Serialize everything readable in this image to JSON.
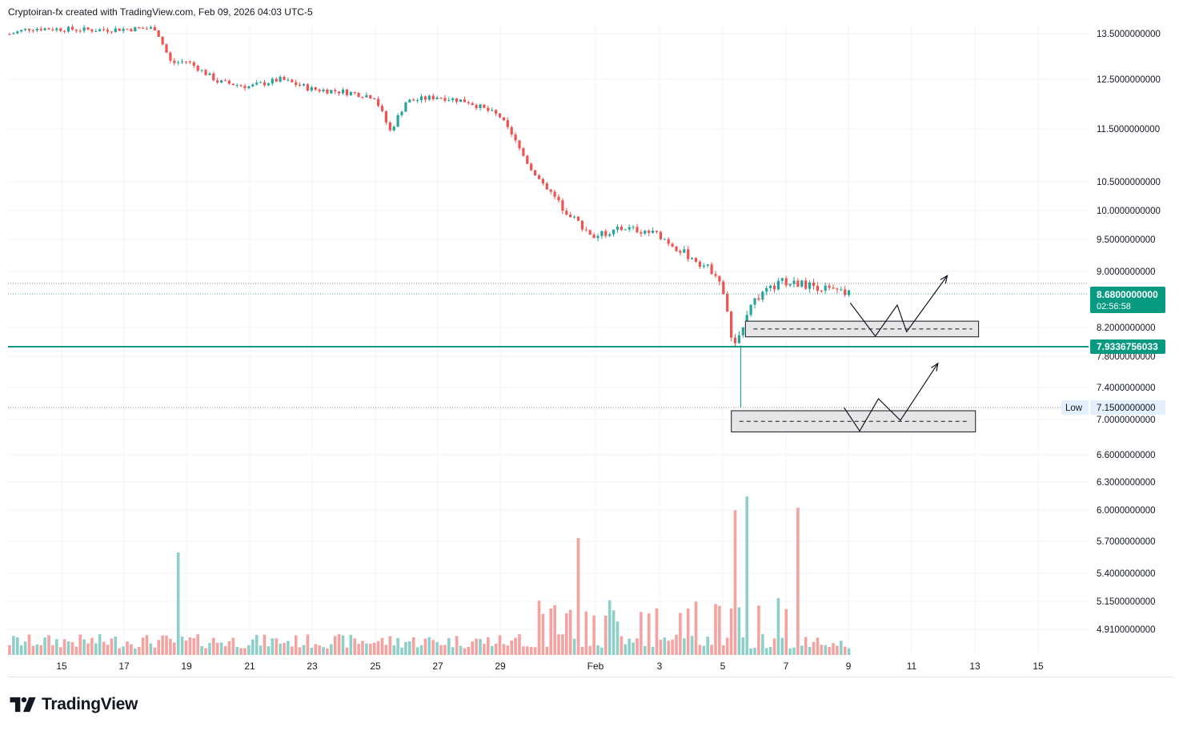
{
  "header": {
    "attribution": "Cryptoiran-fx created with TradingView.com, Feb 09, 2026 04:03 UTC-5"
  },
  "footer": {
    "brand": "TradingView"
  },
  "colors": {
    "up": "#26a69a",
    "down": "#ef5350",
    "upVol": "#8fcfc9",
    "downVol": "#f4a3a1",
    "grid": "#f0f3fa",
    "accent": "#089981",
    "lowTag": "#e3effd"
  },
  "chart_data": {
    "type": "candlestick",
    "title": "",
    "price_scale": {
      "ticks": [
        "13.5000000000",
        "12.5000000000",
        "11.5000000000",
        "10.5000000000",
        "10.0000000000",
        "9.5000000000",
        "9.0000000000",
        "8.2000000000",
        "7.8000000000",
        "7.4000000000",
        "7.0000000000",
        "6.6000000000",
        "6.3000000000",
        "6.0000000000",
        "5.7000000000",
        "5.4000000000",
        "5.1500000000",
        "4.9100000000"
      ]
    },
    "time_scale": {
      "ticks": [
        "15",
        "17",
        "19",
        "21",
        "23",
        "25",
        "27",
        "29",
        "Feb",
        "3",
        "5",
        "7",
        "9",
        "11",
        "13",
        "15"
      ]
    },
    "price_tags": {
      "last_price": "8.6800000000",
      "countdown": "02:56:58",
      "horizontal_line": "7.9336756033",
      "low_label": "Low",
      "low_value": "7.1500000000"
    },
    "price_path": [
      [
        "Jan 13",
        13.42
      ],
      [
        "Jan 14",
        13.62
      ],
      [
        "Jan 15",
        13.6
      ],
      [
        "Jan 16",
        13.58
      ],
      [
        "Jan 17",
        13.6
      ],
      [
        "Jan 18",
        13.62
      ],
      [
        "Jan 18.5",
        12.85
      ],
      [
        "Jan 19",
        12.9
      ],
      [
        "Jan 20",
        12.45
      ],
      [
        "Jan 21",
        12.35
      ],
      [
        "Jan 22",
        12.5
      ],
      [
        "Jan 23",
        12.3
      ],
      [
        "Jan 24",
        12.25
      ],
      [
        "Jan 25",
        12.15
      ],
      [
        "Jan 25.5",
        11.45
      ],
      [
        "Jan 26",
        12.05
      ],
      [
        "Jan 27",
        12.15
      ],
      [
        "Jan 28",
        12.05
      ],
      [
        "Jan 29",
        11.75
      ],
      [
        "Jan 30",
        10.75
      ],
      [
        "Jan 31",
        10.05
      ],
      [
        "Feb 1",
        9.55
      ],
      [
        "Feb 2",
        9.7
      ],
      [
        "Feb 3",
        9.6
      ],
      [
        "Feb 4",
        9.25
      ],
      [
        "Feb 5",
        8.95
      ],
      [
        "Feb 5.5",
        7.9
      ],
      [
        "Feb 6",
        8.55
      ],
      [
        "Feb 7",
        8.85
      ],
      [
        "Feb 8",
        8.8
      ],
      [
        "Feb 9",
        8.68
      ]
    ],
    "volume_note": "volume bars shown beneath price candles",
    "projections": [
      {
        "zone": [
          8.07,
          8.29
        ],
        "path": [
          [
            8.55,
            "Feb 9.2"
          ],
          [
            8.08,
            "Feb 10"
          ],
          [
            8.52,
            "Feb 10.7"
          ],
          [
            8.14,
            "Feb 11"
          ],
          [
            8.94,
            "Feb 12.3"
          ]
        ]
      },
      {
        "zone": [
          6.86,
          7.11
        ],
        "path": [
          [
            7.15,
            "Feb 9"
          ],
          [
            6.87,
            "Feb 9.5"
          ],
          [
            7.26,
            "Feb 10.1"
          ],
          [
            6.99,
            "Feb 10.8"
          ],
          [
            7.71,
            "Feb 12"
          ]
        ]
      }
    ]
  }
}
